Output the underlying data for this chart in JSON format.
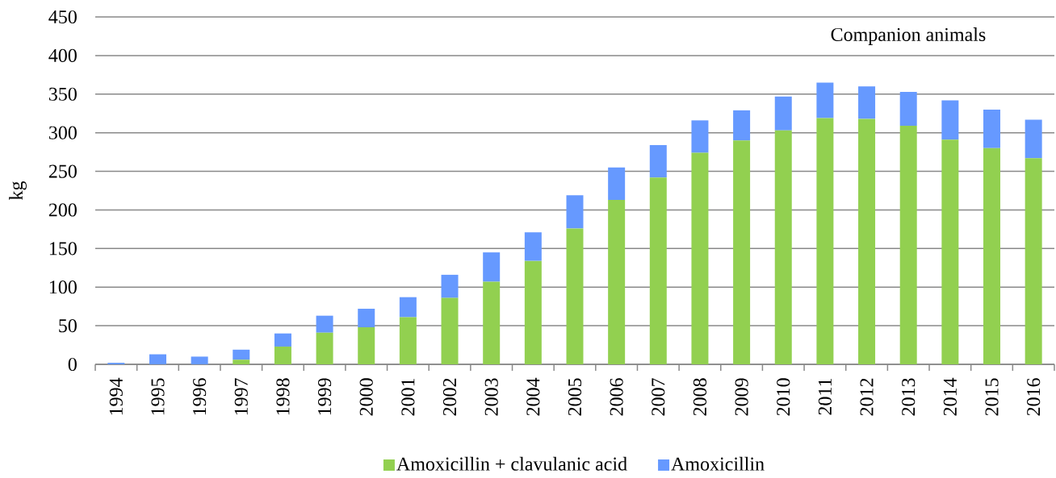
{
  "chart_data": {
    "type": "bar",
    "stacked": true,
    "ylabel": "kg",
    "annotations": [
      "Companion animals"
    ],
    "categories": [
      "1994",
      "1995",
      "1996",
      "1997",
      "1998",
      "1999",
      "2000",
      "2001",
      "2002",
      "2003",
      "2004",
      "2005",
      "2006",
      "2007",
      "2008",
      "2009",
      "2010",
      "2011",
      "2012",
      "2013",
      "2014",
      "2015",
      "2016"
    ],
    "series": [
      {
        "name": "Amoxicillin + clavulanic acid",
        "color": "#92d050",
        "values": [
          0,
          0,
          0,
          6,
          23,
          41,
          48,
          61,
          86,
          107,
          134,
          176,
          213,
          242,
          274,
          290,
          303,
          319,
          318,
          309,
          291,
          280,
          267
        ]
      },
      {
        "name": "Amoxicillin",
        "color": "#6699ff",
        "values": [
          2,
          13,
          10,
          13,
          17,
          22,
          24,
          26,
          30,
          38,
          37,
          43,
          42,
          42,
          42,
          39,
          44,
          46,
          42,
          44,
          51,
          50,
          50
        ]
      }
    ],
    "ylim": [
      0,
      450
    ],
    "yticks": [
      0,
      50,
      100,
      150,
      200,
      250,
      300,
      350,
      400,
      450
    ],
    "grid": "y",
    "legend": "bottom"
  }
}
